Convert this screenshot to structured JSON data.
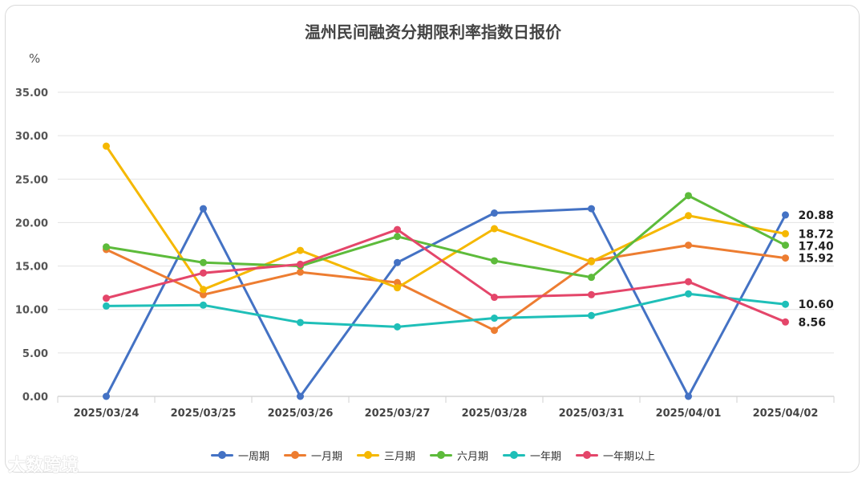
{
  "watermark": "大数跨境",
  "chart_data": {
    "type": "line",
    "title": "温州民间融资分期限利率指数日报价",
    "unit": "%",
    "ylim": [
      0,
      35
    ],
    "yticks": [
      "0.00",
      "5.00",
      "10.00",
      "15.00",
      "20.00",
      "25.00",
      "30.00",
      "35.00"
    ],
    "categories": [
      "2025/03/24",
      "2025/03/25",
      "2025/03/26",
      "2025/03/27",
      "2025/03/28",
      "2025/03/31",
      "2025/04/01",
      "2025/04/02"
    ],
    "grid": true,
    "legend": "bottom",
    "series": [
      {
        "name": "一周期",
        "color": "#4472c4",
        "values": [
          0,
          21.6,
          0,
          15.4,
          21.1,
          21.6,
          0,
          20.88
        ],
        "end_label": "20.88"
      },
      {
        "name": "一月期",
        "color": "#ed7d31",
        "values": [
          16.9,
          11.7,
          14.3,
          13.1,
          7.6,
          15.6,
          17.4,
          15.92
        ],
        "end_label": "15.92"
      },
      {
        "name": "三月期",
        "color": "#f5b800",
        "values": [
          28.8,
          12.3,
          16.8,
          12.5,
          19.3,
          15.5,
          20.8,
          18.72
        ],
        "end_label": "18.72"
      },
      {
        "name": "六月期",
        "color": "#5dbb3b",
        "values": [
          17.2,
          15.4,
          15.0,
          18.4,
          15.6,
          13.7,
          23.1,
          17.4
        ],
        "end_label": "17.40"
      },
      {
        "name": "一年期",
        "color": "#1fbfb8",
        "values": [
          10.4,
          10.5,
          8.5,
          8.0,
          9.0,
          9.3,
          11.8,
          10.6
        ],
        "end_label": "10.60"
      },
      {
        "name": "一年期以上",
        "color": "#e4466a",
        "values": [
          11.3,
          14.2,
          15.2,
          19.2,
          11.4,
          11.7,
          13.2,
          8.56
        ],
        "end_label": "8.56"
      }
    ]
  }
}
